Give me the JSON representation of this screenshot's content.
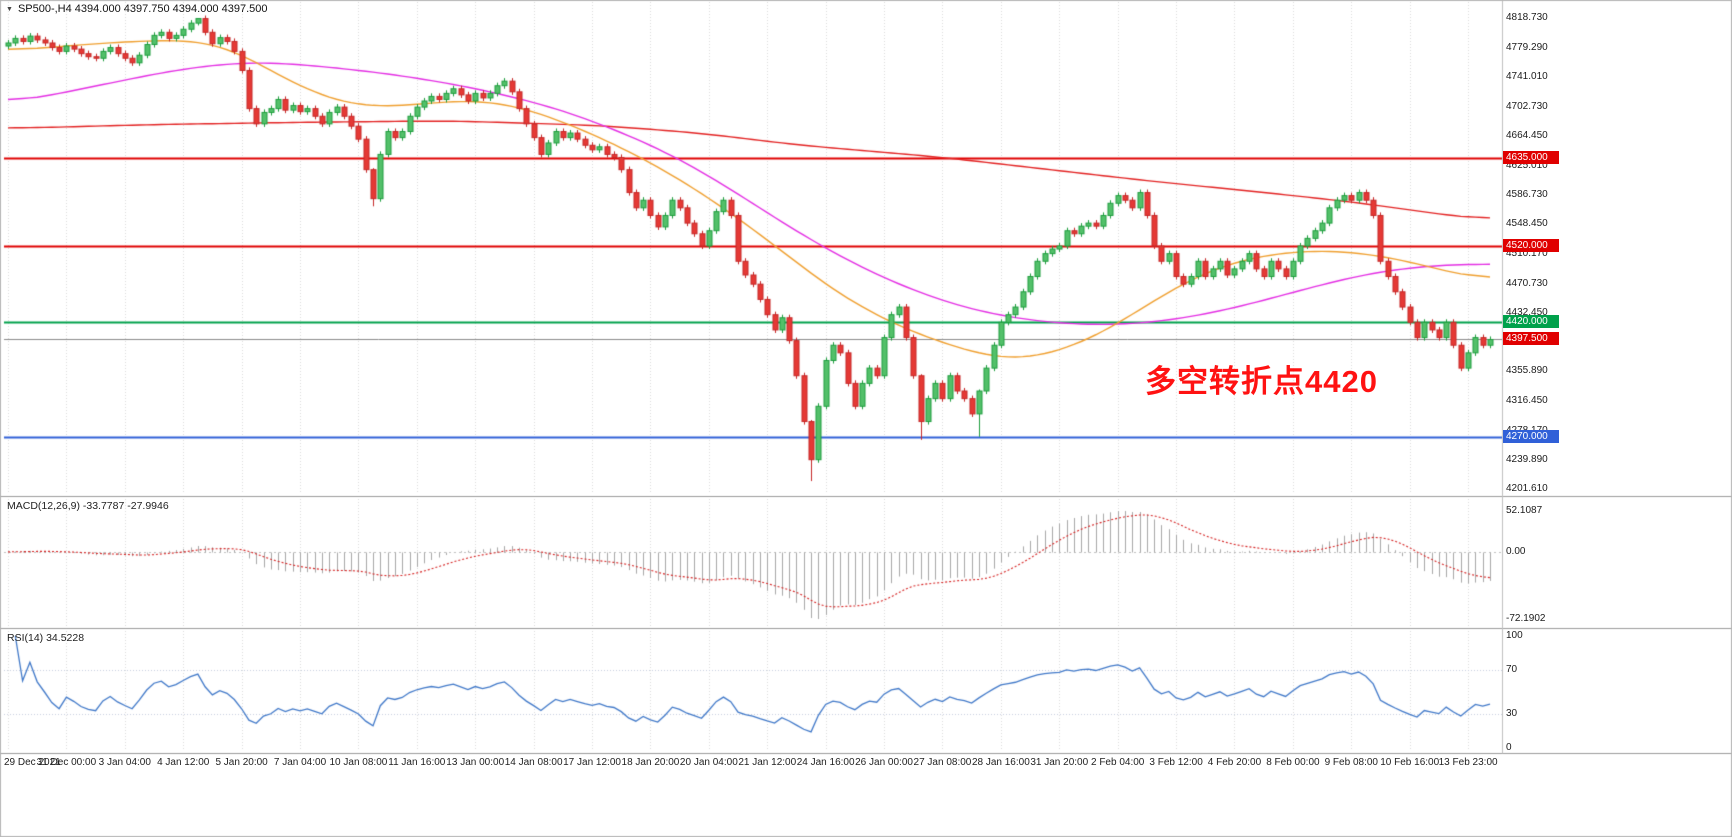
{
  "header": {
    "dropdown_icon": "▼",
    "symbol_line": "SP500-,H4 4394.000 4397.750 4394.000 4397.500"
  },
  "annotation": {
    "text": "多空转折点4420",
    "color": "#ff1212"
  },
  "chart_data": {
    "type": "candlestick",
    "symbol": "SP500-",
    "timeframe": "H4",
    "title": "SP500- H4 candlestick chart with MACD and RSI",
    "price_axis": {
      "max": 4818.73,
      "min": 4201.61,
      "ticks": [
        "4818.730",
        "4779.290",
        "4741.010",
        "4702.730",
        "4664.450",
        "4625.010",
        "4586.730",
        "4548.450",
        "4510.170",
        "4470.730",
        "4432.450",
        "4355.890",
        "4316.450",
        "4278.170",
        "4239.890",
        "4201.610"
      ]
    },
    "time_labels": [
      "29 Dec 2021",
      "31 Dec 00:00",
      "3 Jan 04:00",
      "4 Jan 12:00",
      "5 Jan 20:00",
      "7 Jan 04:00",
      "10 Jan 08:00",
      "11 Jan 16:00",
      "13 Jan 00:00",
      "14 Jan 08:00",
      "17 Jan 12:00",
      "18 Jan 20:00",
      "20 Jan 04:00",
      "21 Jan 12:00",
      "24 Jan 16:00",
      "26 Jan 00:00",
      "27 Jan 08:00",
      "28 Jan 16:00",
      "31 Jan 20:00",
      "2 Feb 04:00",
      "3 Feb 12:00",
      "4 Feb 20:00",
      "8 Feb 00:00",
      "9 Feb 08:00",
      "10 Feb 16:00",
      "13 Feb 23:00"
    ],
    "first_open": 4782,
    "wick_default": 4,
    "wick_overrides": {
      "26": [
        0,
        3
      ],
      "50": [
        2,
        10
      ],
      "110": [
        2,
        28
      ],
      "125": [
        2,
        24
      ],
      "133": [
        2,
        30
      ]
    },
    "closes": [
      4786,
      4792,
      4788,
      4795,
      4790,
      4786,
      4780,
      4775,
      4782,
      4778,
      4772,
      4768,
      4766,
      4775,
      4780,
      4772,
      4766,
      4760,
      4770,
      4784,
      4796,
      4800,
      4792,
      4796,
      4804,
      4812,
      4818,
      4800,
      4785,
      4793,
      4788,
      4775,
      4750,
      4700,
      4680,
      4695,
      4700,
      4712,
      4698,
      4704,
      4696,
      4700,
      4690,
      4680,
      4695,
      4702,
      4690,
      4677,
      4660,
      4620,
      4582,
      4640,
      4670,
      4662,
      4670,
      4690,
      4702,
      4710,
      4716,
      4712,
      4720,
      4726,
      4718,
      4710,
      4720,
      4714,
      4720,
      4730,
      4736,
      4722,
      4700,
      4680,
      4662,
      4640,
      4655,
      4670,
      4662,
      4668,
      4660,
      4652,
      4646,
      4650,
      4640,
      4636,
      4620,
      4590,
      4570,
      4580,
      4560,
      4545,
      4560,
      4580,
      4570,
      4550,
      4536,
      4520,
      4540,
      4565,
      4580,
      4560,
      4500,
      4482,
      4470,
      4450,
      4430,
      4410,
      4426,
      4396,
      4350,
      4290,
      4240,
      4310,
      4370,
      4390,
      4380,
      4340,
      4310,
      4340,
      4360,
      4350,
      4400,
      4430,
      4440,
      4400,
      4350,
      4290,
      4320,
      4340,
      4320,
      4350,
      4330,
      4320,
      4300,
      4330,
      4360,
      4390,
      4420,
      4430,
      4440,
      4460,
      4480,
      4500,
      4510,
      4516,
      4520,
      4540,
      4536,
      4546,
      4550,
      4546,
      4560,
      4576,
      4586,
      4580,
      4570,
      4590,
      4560,
      4520,
      4500,
      4510,
      4480,
      4470,
      4480,
      4500,
      4480,
      4490,
      4500,
      4482,
      4490,
      4500,
      4510,
      4490,
      4480,
      4500,
      4490,
      4480,
      4500,
      4520,
      4530,
      4540,
      4550,
      4570,
      4580,
      4586,
      4580,
      4590,
      4580,
      4560,
      4500,
      4480,
      4460,
      4440,
      4420,
      4400,
      4420,
      4410,
      4400,
      4420,
      4390,
      4360,
      4380,
      4400,
      4390,
      4397.5
    ],
    "candle_colors": {
      "up_fill": "#53c06a",
      "up_border": "#1e9e3e",
      "down_fill": "#e53935",
      "down_border": "#c62828"
    },
    "hlines": [
      {
        "price": 4635.0,
        "label": "4635.000",
        "color": "#e00000",
        "line_width": 2
      },
      {
        "price": 4520.0,
        "label": "4520.000",
        "color": "#e00000",
        "line_width": 2
      },
      {
        "price": 4420.0,
        "label": "4420.000",
        "color": "#00a14b",
        "line_width": 2
      },
      {
        "price": 4270.0,
        "label": "4270.000",
        "color": "#3060d8",
        "line_width": 2
      }
    ],
    "current_price": {
      "price": 4397.5,
      "label": "4397.500",
      "line_color": "#8a8a8a",
      "badge_color": "#e00000"
    },
    "moving_averages": [
      {
        "name": "ma-slow-red",
        "color": "#e32222",
        "anchors": [
          [
            0,
            4674
          ],
          [
            0.096,
            4679
          ],
          [
            0.197,
            4682
          ],
          [
            0.298,
            4684
          ],
          [
            0.399,
            4678
          ],
          [
            0.467,
            4668
          ],
          [
            0.534,
            4652
          ],
          [
            0.602,
            4641
          ],
          [
            0.636,
            4635
          ],
          [
            0.703,
            4620
          ],
          [
            0.771,
            4605
          ],
          [
            0.838,
            4592
          ],
          [
            0.906,
            4578
          ],
          [
            0.973,
            4560
          ],
          [
            1,
            4553
          ]
        ]
      },
      {
        "name": "ma-mid-magenta",
        "color": "#e42ee4",
        "anchors": [
          [
            0,
            4706
          ],
          [
            0.055,
            4728
          ],
          [
            0.116,
            4752
          ],
          [
            0.163,
            4762
          ],
          [
            0.21,
            4756
          ],
          [
            0.264,
            4744
          ],
          [
            0.318,
            4726
          ],
          [
            0.372,
            4700
          ],
          [
            0.426,
            4660
          ],
          [
            0.467,
            4620
          ],
          [
            0.507,
            4570
          ],
          [
            0.548,
            4520
          ],
          [
            0.588,
            4480
          ],
          [
            0.629,
            4448
          ],
          [
            0.669,
            4428
          ],
          [
            0.71,
            4418
          ],
          [
            0.75,
            4416
          ],
          [
            0.791,
            4424
          ],
          [
            0.831,
            4440
          ],
          [
            0.872,
            4462
          ],
          [
            0.912,
            4482
          ],
          [
            0.953,
            4494
          ],
          [
            1,
            4497
          ]
        ]
      },
      {
        "name": "ma-fast-orange",
        "color": "#f0a030",
        "anchors": [
          [
            0,
            4775
          ],
          [
            0.049,
            4784
          ],
          [
            0.103,
            4790
          ],
          [
            0.143,
            4788
          ],
          [
            0.184,
            4742
          ],
          [
            0.217,
            4710
          ],
          [
            0.251,
            4700
          ],
          [
            0.285,
            4708
          ],
          [
            0.325,
            4712
          ],
          [
            0.359,
            4695
          ],
          [
            0.393,
            4668
          ],
          [
            0.426,
            4638
          ],
          [
            0.46,
            4600
          ],
          [
            0.494,
            4555
          ],
          [
            0.528,
            4505
          ],
          [
            0.561,
            4455
          ],
          [
            0.595,
            4420
          ],
          [
            0.622,
            4398
          ],
          [
            0.649,
            4382
          ],
          [
            0.676,
            4368
          ],
          [
            0.703,
            4378
          ],
          [
            0.73,
            4396
          ],
          [
            0.757,
            4428
          ],
          [
            0.784,
            4462
          ],
          [
            0.811,
            4490
          ],
          [
            0.845,
            4508
          ],
          [
            0.879,
            4515
          ],
          [
            0.912,
            4512
          ],
          [
            0.946,
            4500
          ],
          [
            0.98,
            4482
          ],
          [
            1,
            4472
          ]
        ]
      }
    ],
    "indicators": {
      "macd": {
        "label": "MACD(12,26,9) -33.7787 -27.9946",
        "fast": 12,
        "slow": 26,
        "signal": 9,
        "axis_labels": [
          "52.1087",
          "0.00",
          "-72.1902"
        ],
        "histogram_color": "#a8a8a8",
        "signal_color": "#d62222"
      },
      "rsi": {
        "label": "RSI(14) 34.5228",
        "period": 14,
        "axis_labels": [
          "100",
          "70",
          "30",
          "0"
        ],
        "levels": [
          70,
          30
        ],
        "line_color": "#4179c9"
      }
    }
  }
}
